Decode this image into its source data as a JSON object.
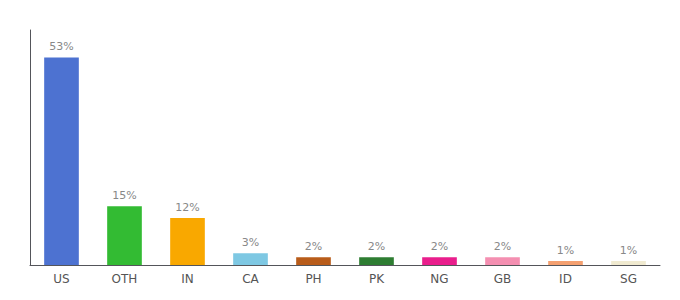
{
  "chart_data": {
    "type": "bar",
    "categories": [
      "US",
      "OTH",
      "IN",
      "CA",
      "PH",
      "PK",
      "NG",
      "GB",
      "ID",
      "SG"
    ],
    "values": [
      53,
      15,
      12,
      3,
      2,
      2,
      2,
      2,
      1,
      1
    ],
    "value_labels": [
      "53%",
      "15%",
      "12%",
      "3%",
      "2%",
      "2%",
      "2%",
      "2%",
      "1%",
      "1%"
    ],
    "colors": [
      "#4d72d1",
      "#33bb33",
      "#f9a800",
      "#7ec8e3",
      "#b85c1a",
      "#2e7d32",
      "#e91e8c",
      "#f48fb1",
      "#f4a070",
      "#f0ead0"
    ],
    "ylim": [
      0,
      60
    ],
    "grid": false,
    "tick_labels": "x"
  }
}
